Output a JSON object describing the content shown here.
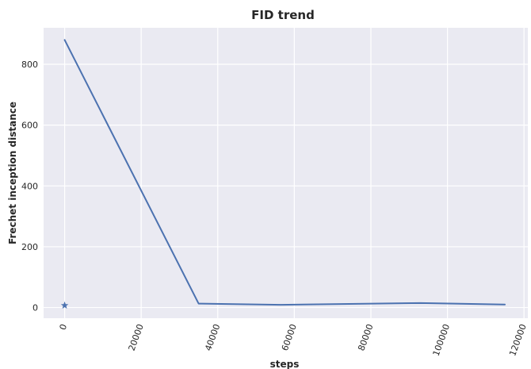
{
  "chart_data": {
    "type": "line",
    "title": "FID trend",
    "xlabel": "steps",
    "ylabel": "Frechet inception distance",
    "xlim": [
      -5500,
      121000
    ],
    "ylim": [
      -35,
      920
    ],
    "xticks": [
      0,
      20000,
      40000,
      60000,
      80000,
      100000,
      120000
    ],
    "xtick_labels": [
      "0",
      "20000",
      "40000",
      "60000",
      "80000",
      "100000",
      "120000"
    ],
    "yticks": [
      0,
      200,
      400,
      600,
      800
    ],
    "ytick_labels": [
      "0",
      "200",
      "400",
      "600",
      "800"
    ],
    "grid": true,
    "series": [
      {
        "color": "#4c72b0",
        "marker": "none",
        "points": [
          {
            "x": 0,
            "y": 880
          },
          {
            "x": 35000,
            "y": 13
          },
          {
            "x": 56500,
            "y": 9
          },
          {
            "x": 93000,
            "y": 15
          },
          {
            "x": 115000,
            "y": 10
          }
        ]
      },
      {
        "color": "#4c72b0",
        "marker": "star",
        "points": [
          {
            "x": 0,
            "y": 7
          }
        ]
      }
    ]
  }
}
